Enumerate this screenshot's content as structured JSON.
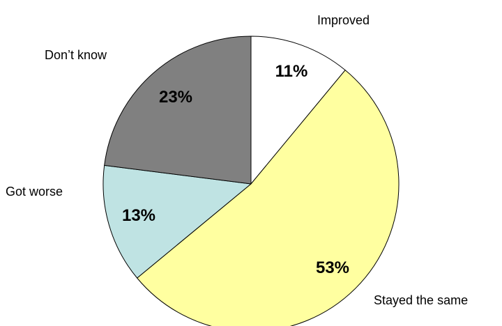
{
  "chart_data": {
    "type": "pie",
    "title": "",
    "start_angle_deg": 0,
    "direction": "clockwise",
    "legend": "none",
    "slices": [
      {
        "label": "Improved",
        "value": 11,
        "value_label": "11%",
        "color": "#ffffff"
      },
      {
        "label": "Stayed the same",
        "value": 53,
        "value_label": "53%",
        "color": "#ffffa0"
      },
      {
        "label": "Got worse",
        "value": 13,
        "value_label": "13%",
        "color": "#bfe3e3"
      },
      {
        "label": "Don’t know",
        "value": 23,
        "value_label": "23%",
        "color": "#808080"
      }
    ]
  }
}
